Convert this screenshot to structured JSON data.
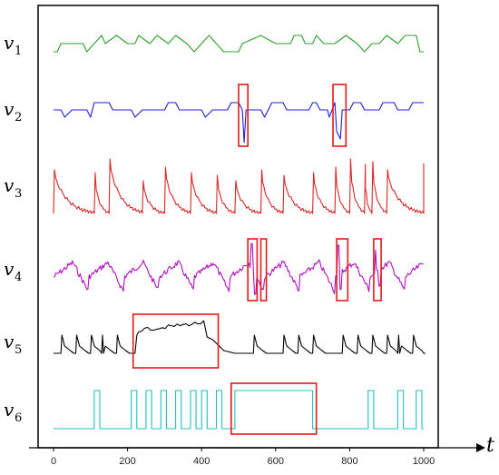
{
  "chart_data": {
    "type": "line",
    "x_range": [
      0,
      1000
    ],
    "x_ticks": [
      0,
      200,
      400,
      600,
      800,
      1000
    ],
    "x_label": "t",
    "grid": false,
    "series": [
      {
        "name": "v",
        "sub": "1",
        "color": "#2ca02c",
        "kind": "step",
        "points": [
          [
            0,
            0
          ],
          [
            10,
            0
          ],
          [
            20,
            1
          ],
          [
            80,
            1
          ],
          [
            90,
            0
          ],
          [
            110,
            1
          ],
          [
            130,
            2
          ],
          [
            140,
            1
          ],
          [
            170,
            2
          ],
          [
            200,
            1
          ],
          [
            220,
            1
          ],
          [
            230,
            2
          ],
          [
            260,
            1
          ],
          [
            280,
            2
          ],
          [
            310,
            1
          ],
          [
            330,
            2
          ],
          [
            360,
            1
          ],
          [
            380,
            0
          ],
          [
            400,
            1
          ],
          [
            420,
            2
          ],
          [
            440,
            1
          ],
          [
            460,
            0
          ],
          [
            500,
            0
          ],
          [
            510,
            1
          ],
          [
            560,
            2
          ],
          [
            600,
            1
          ],
          [
            640,
            1
          ],
          [
            650,
            2
          ],
          [
            670,
            2
          ],
          [
            680,
            1
          ],
          [
            700,
            1
          ],
          [
            710,
            2
          ],
          [
            730,
            1
          ],
          [
            760,
            1
          ],
          [
            790,
            2
          ],
          [
            820,
            1
          ],
          [
            840,
            0
          ],
          [
            860,
            1
          ],
          [
            880,
            1
          ],
          [
            900,
            2
          ],
          [
            930,
            1
          ],
          [
            950,
            2
          ],
          [
            980,
            2
          ],
          [
            990,
            0
          ],
          [
            1000,
            0
          ]
        ]
      },
      {
        "name": "v",
        "sub": "2",
        "color": "#1f1fd0",
        "kind": "step",
        "points": [
          [
            0,
            0
          ],
          [
            20,
            0
          ],
          [
            30,
            -1
          ],
          [
            50,
            0
          ],
          [
            90,
            0
          ],
          [
            100,
            -1
          ],
          [
            110,
            1
          ],
          [
            150,
            1
          ],
          [
            160,
            0
          ],
          [
            210,
            0
          ],
          [
            220,
            -1
          ],
          [
            240,
            0
          ],
          [
            300,
            0
          ],
          [
            310,
            1
          ],
          [
            330,
            1
          ],
          [
            340,
            0
          ],
          [
            400,
            0
          ],
          [
            410,
            -1
          ],
          [
            430,
            0
          ],
          [
            470,
            0
          ],
          [
            480,
            1
          ],
          [
            500,
            1
          ],
          [
            510,
            0
          ],
          [
            515,
            -4.5
          ],
          [
            520,
            0
          ],
          [
            560,
            0
          ],
          [
            570,
            -1
          ],
          [
            590,
            1
          ],
          [
            620,
            1
          ],
          [
            630,
            0
          ],
          [
            690,
            0
          ],
          [
            700,
            1
          ],
          [
            710,
            1
          ],
          [
            720,
            0
          ],
          [
            740,
            0
          ],
          [
            745,
            -1
          ],
          [
            760,
            1
          ],
          [
            765,
            -3
          ],
          [
            775,
            -4
          ],
          [
            780,
            0
          ],
          [
            800,
            0
          ],
          [
            810,
            1
          ],
          [
            830,
            1
          ],
          [
            840,
            0
          ],
          [
            880,
            0
          ],
          [
            890,
            1
          ],
          [
            920,
            1
          ],
          [
            930,
            0
          ],
          [
            960,
            0
          ],
          [
            970,
            1
          ],
          [
            990,
            1
          ],
          [
            1000,
            1
          ]
        ]
      },
      {
        "name": "v",
        "sub": "3",
        "color": "#d62728",
        "kind": "spike",
        "peaks": [
          0,
          110,
          150,
          240,
          300,
          370,
          440,
          490,
          560,
          620,
          700,
          760,
          800,
          840,
          860,
          900,
          1000
        ],
        "heights": [
          0.8,
          0.75,
          1.0,
          0.6,
          0.85,
          0.75,
          0.7,
          0.6,
          0.8,
          0.7,
          0.75,
          0.85,
          1.0,
          0.9,
          0.95,
          0.8,
          0.85
        ],
        "base": 0
      },
      {
        "name": "v",
        "sub": "4",
        "color": "#b010c0",
        "kind": "periodic",
        "period": 95,
        "phase": 0,
        "anomalies": [
          [
            535,
            -1.6
          ],
          [
            545,
            1.5
          ],
          [
            565,
            1.2
          ],
          [
            770,
            -1.5
          ],
          [
            775,
            1.2
          ],
          [
            870,
            -1.2
          ],
          [
            880,
            1.0
          ]
        ]
      },
      {
        "name": "v",
        "sub": "5",
        "color": "#000000",
        "kind": "pulse",
        "peaks": [
          20,
          60,
          100,
          130,
          170,
          420,
          540,
          620,
          660,
          700,
          780,
          820,
          860,
          900,
          930,
          970
        ],
        "anomaly_range": [
          220,
          430
        ]
      },
      {
        "name": "v",
        "sub": "6",
        "color": "#1fbfbf",
        "kind": "rect",
        "pulses": [
          [
            110,
            125
          ],
          [
            210,
            225
          ],
          [
            250,
            265
          ],
          [
            290,
            305
          ],
          [
            330,
            345
          ],
          [
            370,
            385
          ],
          [
            400,
            415
          ],
          [
            440,
            455
          ],
          [
            490,
            700
          ],
          [
            850,
            865
          ],
          [
            930,
            945
          ],
          [
            980,
            995
          ]
        ]
      }
    ],
    "anomaly_boxes": [
      {
        "series": 1,
        "x": [
          500,
          525
        ],
        "label": ""
      },
      {
        "series": 1,
        "x": [
          755,
          790
        ],
        "label": ""
      },
      {
        "series": 3,
        "x": [
          525,
          550
        ],
        "label": ""
      },
      {
        "series": 3,
        "x": [
          560,
          575
        ],
        "label": ""
      },
      {
        "series": 3,
        "x": [
          765,
          795
        ],
        "label": ""
      },
      {
        "series": 3,
        "x": [
          865,
          885
        ],
        "label": ""
      },
      {
        "series": 4,
        "x": [
          215,
          445
        ],
        "label": ""
      },
      {
        "series": 5,
        "x": [
          480,
          710
        ],
        "label": ""
      }
    ]
  },
  "colors": {
    "anomaly_box": "#e31a1c",
    "frame": "#000000"
  }
}
